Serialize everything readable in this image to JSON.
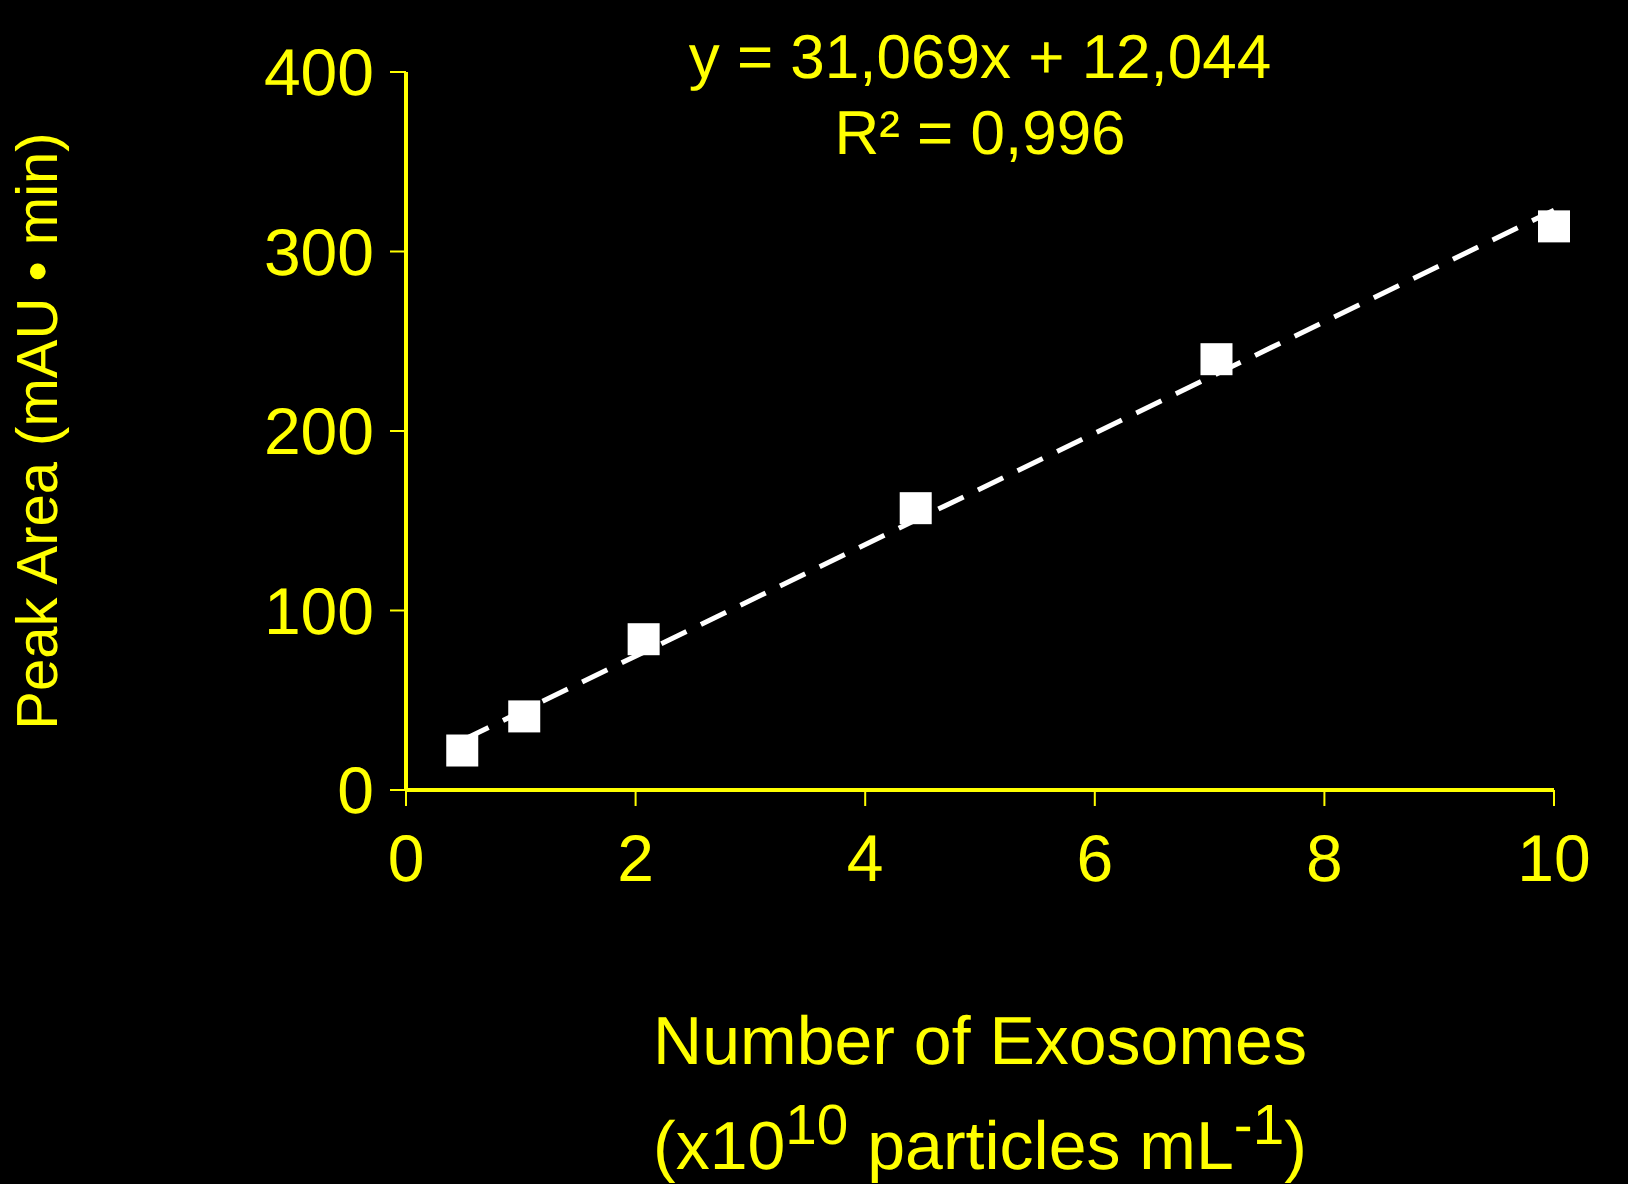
{
  "chart_data": {
    "type": "scatter",
    "xlabel": "Number of Exosomes\n(x10$^{10}$ particles mL$^{-1}$)",
    "ylabel": "Peak Area (mAU • min)",
    "annotations": [
      "y = 31,069x + 12,044",
      "R² = 0,996"
    ],
    "series": [
      {
        "color": "#ffffff",
        "marker": "square",
        "x": [
          0.49,
          1.03,
          2.07,
          4.44,
          7.06,
          10
        ],
        "values": [
          22,
          41,
          84,
          157,
          240,
          314
        ]
      },
      {
        "type": "line",
        "color": "#ffffff",
        "line_style": "dashed",
        "marker": "none",
        "x": [
          0.5,
          10
        ],
        "values": [
          28,
          323
        ]
      }
    ],
    "xlim": [
      0,
      10
    ],
    "xticks": [
      0,
      2,
      4,
      6,
      8,
      10
    ],
    "ylim": [
      0,
      400
    ],
    "yticks": [
      0,
      100,
      200,
      300,
      400
    ],
    "grid": false,
    "legend": false
  }
}
